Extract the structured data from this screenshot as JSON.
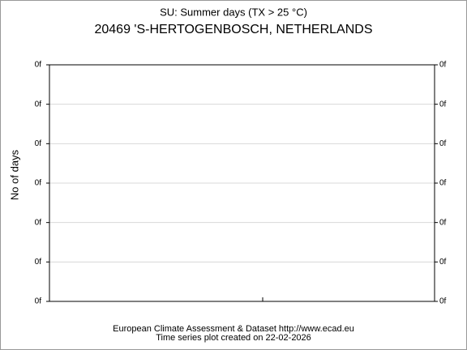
{
  "chart_data": {
    "type": "line",
    "title": "SU: Summer days (TX > 25 °C)",
    "subtitle": "20469 'S-HERTOGENBOSCH, NETHERLANDS",
    "ylabel": "No of days",
    "ylim": [
      0,
      6
    ],
    "yticks": [
      {
        "value": 0,
        "label": "0f"
      },
      {
        "value": 1,
        "label": "0f"
      },
      {
        "value": 2,
        "label": "0f"
      },
      {
        "value": 3,
        "label": "0f"
      },
      {
        "value": 4,
        "label": "0f"
      },
      {
        "value": 5,
        "label": "0f"
      },
      {
        "value": 6,
        "label": "0f"
      }
    ],
    "grid": true,
    "footer": [
      "European Climate Assessment & Dataset  http://www.ecad.eu",
      "Time series plot created on 22-02-2026"
    ]
  }
}
